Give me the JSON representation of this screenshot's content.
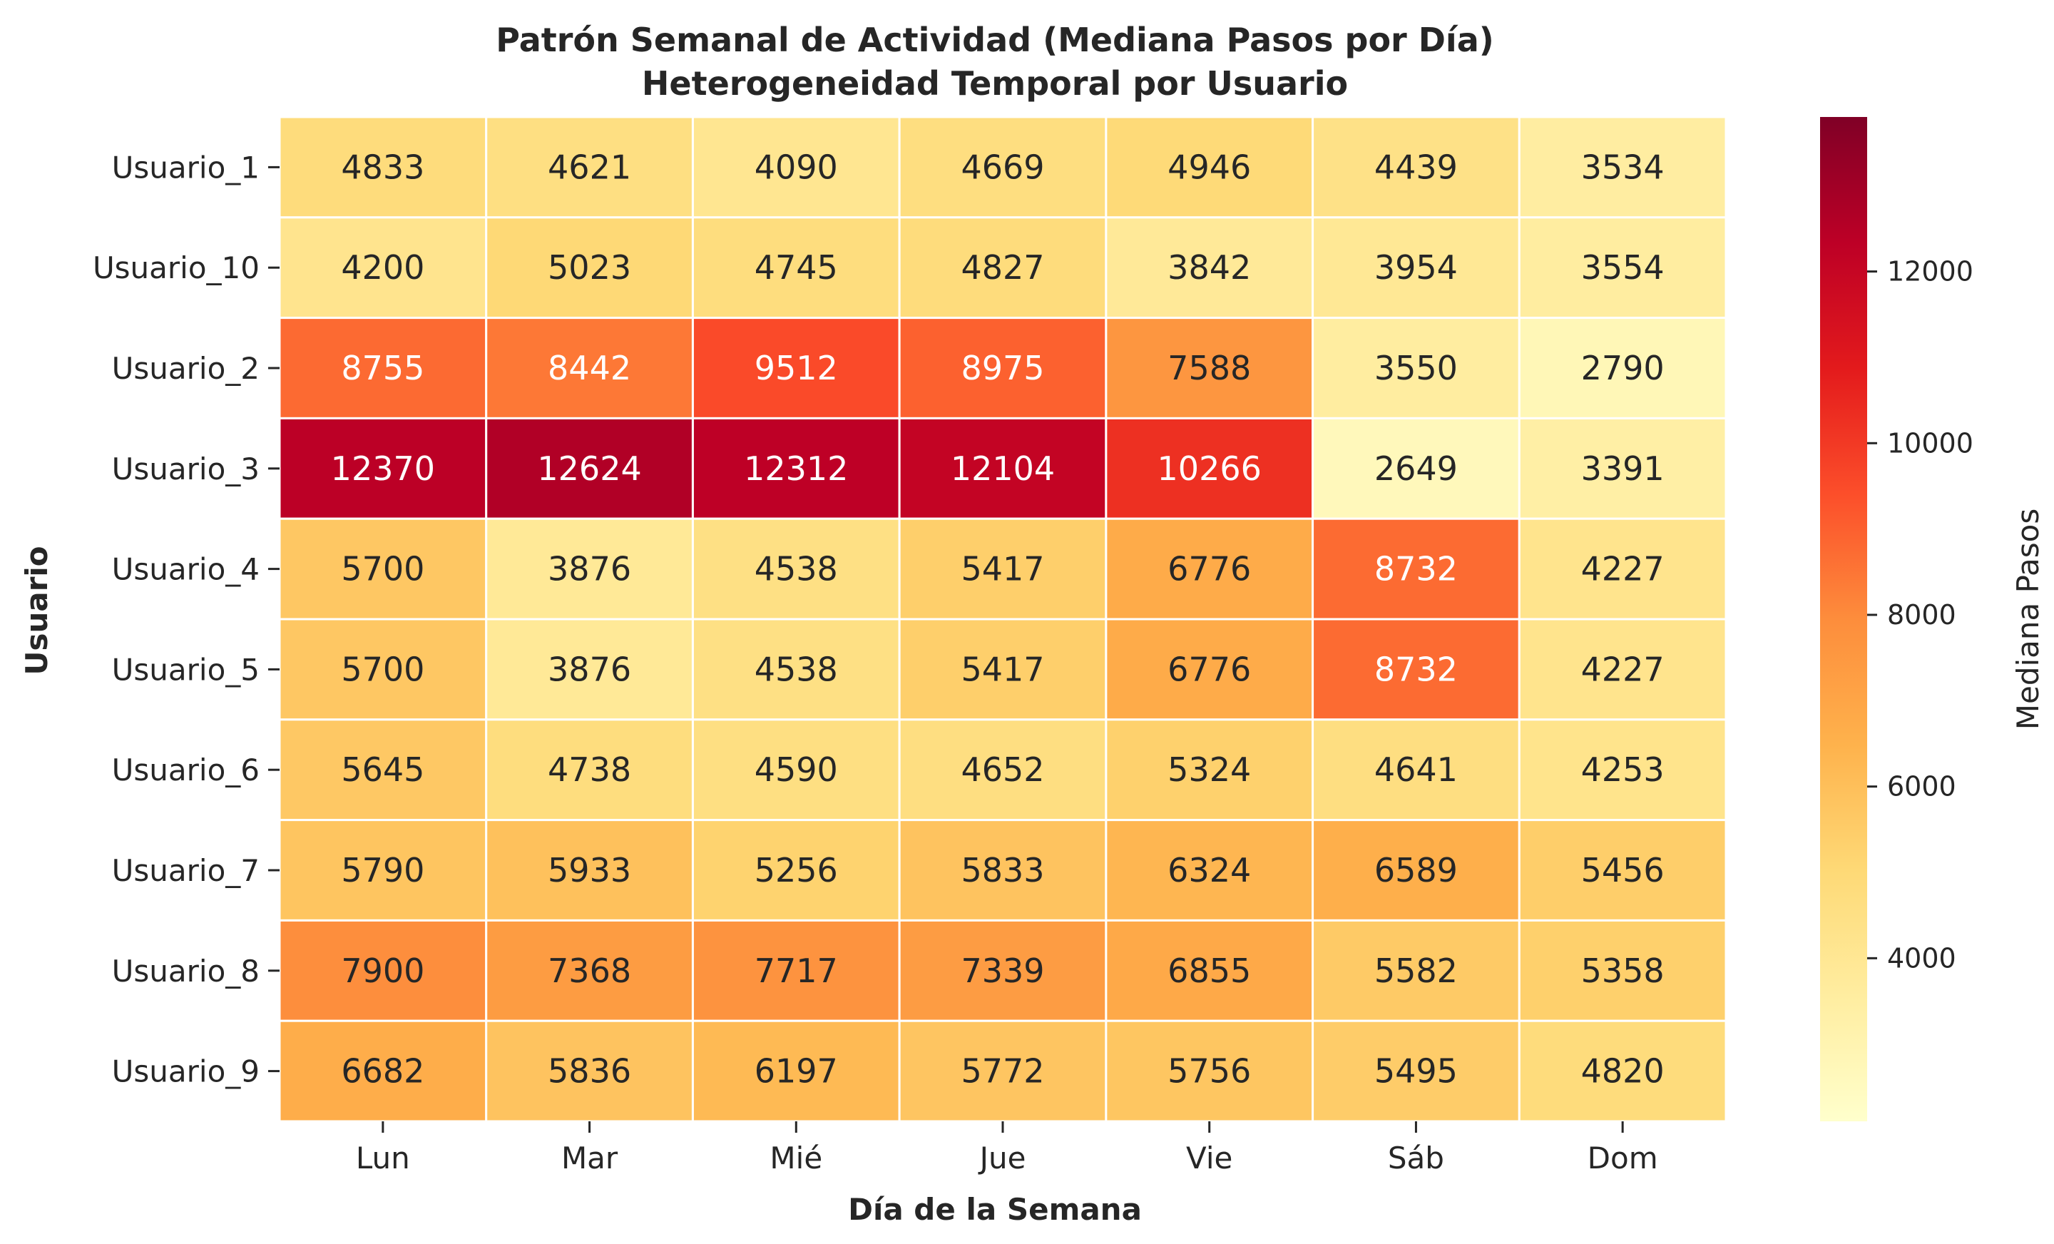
{
  "chart_data": {
    "type": "heatmap",
    "title": "Patrón Semanal de Actividad (Mediana Pasos por Día)",
    "subtitle": "Heterogeneidad Temporal por Usuario",
    "xlabel": "Día de la Semana",
    "ylabel": "Usuario",
    "x_categories": [
      "Lun",
      "Mar",
      "Mié",
      "Jue",
      "Vie",
      "Sáb",
      "Dom"
    ],
    "y_categories": [
      "Usuario_1",
      "Usuario_10",
      "Usuario_2",
      "Usuario_3",
      "Usuario_4",
      "Usuario_5",
      "Usuario_6",
      "Usuario_7",
      "Usuario_8",
      "Usuario_9"
    ],
    "values": [
      [
        4833,
        4621,
        4090,
        4669,
        4946,
        4439,
        3534
      ],
      [
        4200,
        5023,
        4745,
        4827,
        3842,
        3954,
        3554
      ],
      [
        8755,
        8442,
        9512,
        8975,
        7588,
        3550,
        2790
      ],
      [
        12370,
        12624,
        12312,
        12104,
        10266,
        2649,
        3391
      ],
      [
        5700,
        3876,
        4538,
        5417,
        6776,
        8732,
        4227
      ],
      [
        5700,
        3876,
        4538,
        5417,
        6776,
        8732,
        4227
      ],
      [
        5645,
        4738,
        4590,
        4652,
        5324,
        4641,
        4253
      ],
      [
        5790,
        5933,
        5256,
        5833,
        6324,
        6589,
        5456
      ],
      [
        7900,
        7368,
        7717,
        7339,
        6855,
        5582,
        5358
      ],
      [
        6682,
        5836,
        6197,
        5772,
        5756,
        5495,
        4820
      ]
    ],
    "colormap": "YlOrRd",
    "colorbar": {
      "label": "Mediana Pasos",
      "range": [
        2100,
        13800
      ],
      "ticks": [
        4000,
        6000,
        8000,
        10000,
        12000
      ]
    },
    "grid": false
  }
}
